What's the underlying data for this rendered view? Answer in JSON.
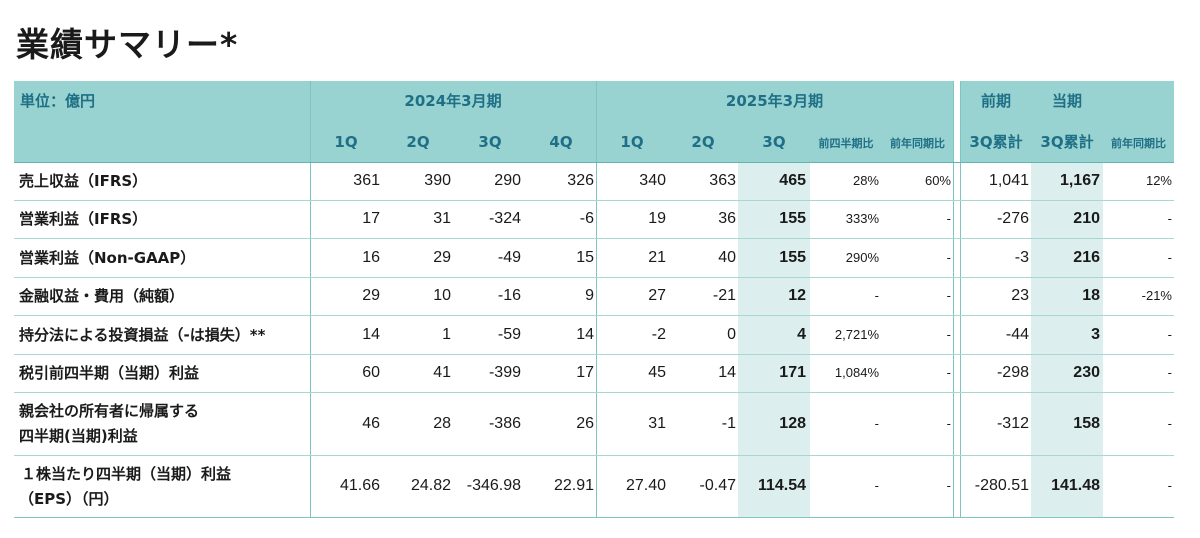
{
  "title": "業績サマリー*",
  "header": {
    "unit": "単位：億円",
    "fy2024": "2024年3月期",
    "fy2025": "2025年3月期",
    "prev": "前期",
    "curr": "当期",
    "q1": "1Q",
    "q2": "2Q",
    "q3": "3Q",
    "q4": "4Q",
    "qoq": "前四半期比",
    "yoy": "前年同期比",
    "cum": "3Q累計",
    "yoy2": "前年同期比"
  },
  "rows": [
    {
      "label": "売上収益（IFRS）",
      "v": [
        "361",
        "390",
        "290",
        "326",
        "340",
        "363",
        "465",
        "28%",
        "60%",
        "1,041",
        "1,167",
        "12%"
      ]
    },
    {
      "label": "営業利益（IFRS）",
      "v": [
        "17",
        "31",
        "-324",
        "-6",
        "19",
        "36",
        "155",
        "333%",
        "-",
        "-276",
        "210",
        "-"
      ]
    },
    {
      "label": "営業利益（Non-GAAP）",
      "v": [
        "16",
        "29",
        "-49",
        "15",
        "21",
        "40",
        "155",
        "290%",
        "-",
        "-3",
        "216",
        "-"
      ]
    },
    {
      "label": "金融収益・費用（純額）",
      "v": [
        "29",
        "10",
        "-16",
        "9",
        "27",
        "-21",
        "12",
        "-",
        "-",
        "23",
        "18",
        "-21%"
      ]
    },
    {
      "label": "持分法による投資損益（-は損失）**",
      "v": [
        "14",
        "1",
        "-59",
        "14",
        "-2",
        "0",
        "4",
        "2,721%",
        "-",
        "-44",
        "3",
        "-"
      ]
    },
    {
      "label": "税引前四半期（当期）利益",
      "v": [
        "60",
        "41",
        "-399",
        "17",
        "45",
        "14",
        "171",
        "1,084%",
        "-",
        "-298",
        "230",
        "-"
      ]
    },
    {
      "label": "親会社の所有者に帰属する",
      "label2": "四半期(当期)利益",
      "v": [
        "46",
        "28",
        "-386",
        "26",
        "31",
        "-1",
        "128",
        "-",
        "-",
        "-312",
        "158",
        "-"
      ]
    },
    {
      "label": "１株当たり四半期（当期）利益",
      "label2": "（EPS）（円）",
      "v": [
        "41.66",
        "24.82",
        "-346.98",
        "22.91",
        "27.40",
        "-0.47",
        "114.54",
        "-",
        "-",
        "-280.51",
        "141.48",
        "-"
      ]
    }
  ],
  "colors": {
    "header_bg": "#98d3d1",
    "highlight": "#dcefee",
    "header_text": "#1f6f86"
  }
}
